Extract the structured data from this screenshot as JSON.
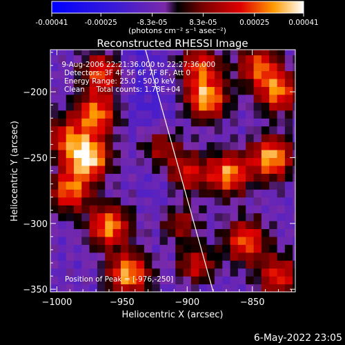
{
  "chart_data": {
    "type": "heatmap",
    "title": "Reconstructed RHESSI Image",
    "xlabel": "Heliocentric X (arcsec)",
    "ylabel": "Heliocentric Y (arcsec)",
    "xlim": [
      -1005,
      -817
    ],
    "ylim": [
      -352,
      -168
    ],
    "xticks": [
      -1000,
      -950,
      -900,
      -850
    ],
    "yticks": [
      -200,
      -250,
      -300,
      -350
    ],
    "colorbar": {
      "range": [
        -0.00041,
        0.00041
      ],
      "ticks": [
        "-0.00041",
        "-0.00025",
        "-8.3e-05",
        "8.3e-05",
        "0.00025",
        "0.00041"
      ],
      "tick_values": [
        -0.00041,
        -0.00025,
        -8.3e-05,
        8.3e-05,
        0.00025,
        0.00041
      ],
      "units": "(photons cm⁻² s⁻¹ asec⁻²)"
    },
    "annotations": [
      " 9-Aug-2006 22:21:36.000 to 22:27:36.000",
      "Detectors: 3F 4F 5F 6F 7F 8F, Att 0",
      "Energy Range: 25.0 - 50.0 keV",
      "Clean     Total counts: 1.78E+04"
    ],
    "peak_label": "Position of Peak = [-976,-250]",
    "peak_position": [
      -976,
      -250
    ],
    "limb_line": {
      "x": [
        -932,
        -880
      ],
      "y": [
        -168,
        -352
      ]
    },
    "blobs": [
      {
        "x": -976,
        "y": -250,
        "value": 0.00041
      },
      {
        "x": -970,
        "y": -217,
        "value": 0.0003
      },
      {
        "x": -990,
        "y": -275,
        "value": 0.00028
      },
      {
        "x": -960,
        "y": -302,
        "value": 0.00032
      },
      {
        "x": -945,
        "y": -338,
        "value": 0.00034
      },
      {
        "x": -993,
        "y": -235,
        "value": 0.0002
      },
      {
        "x": -920,
        "y": -242,
        "value": 0.00018
      },
      {
        "x": -885,
        "y": -205,
        "value": 0.00033
      },
      {
        "x": -868,
        "y": -262,
        "value": 0.00031
      },
      {
        "x": -900,
        "y": -262,
        "value": 0.00022
      },
      {
        "x": -835,
        "y": -250,
        "value": 0.00035
      },
      {
        "x": -830,
        "y": -200,
        "value": 0.00028
      },
      {
        "x": -855,
        "y": -313,
        "value": 0.00027
      },
      {
        "x": -893,
        "y": -332,
        "value": 0.00024
      },
      {
        "x": -905,
        "y": -300,
        "value": 0.00018
      },
      {
        "x": -965,
        "y": -185,
        "value": 0.00025
      },
      {
        "x": -890,
        "y": -180,
        "value": 0.00022
      },
      {
        "x": -845,
        "y": -180,
        "value": 0.00024
      },
      {
        "x": -830,
        "y": -340,
        "value": 0.00022
      }
    ]
  },
  "footer": {
    "date": "6-May-2022 23:05"
  }
}
